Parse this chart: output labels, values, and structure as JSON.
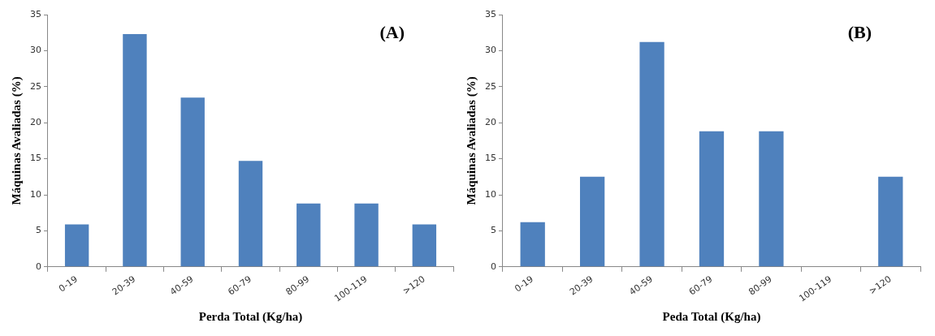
{
  "chart_data": [
    {
      "type": "bar",
      "categories": [
        "0-19",
        "20-39",
        "40-59",
        "60-79",
        "80-99",
        "100-119",
        ">120"
      ],
      "values": [
        5.9,
        32.3,
        23.5,
        14.7,
        8.8,
        8.8,
        5.9
      ],
      "color": "#4f81bd",
      "xlabel": "Perda Total (Kg/ha)",
      "ylabel": "Máquinas Avaliadas (%)",
      "ylim": [
        0,
        35
      ],
      "yticks": [
        0,
        5,
        10,
        15,
        20,
        25,
        30,
        35
      ],
      "grid": false,
      "legend": false,
      "annotations": [
        "(A)"
      ]
    },
    {
      "type": "bar",
      "categories": [
        "0-19",
        "20-39",
        "40-59",
        "60-79",
        "80-99",
        "100-119",
        ">120"
      ],
      "values": [
        6.2,
        12.5,
        31.2,
        18.8,
        18.8,
        0,
        12.5
      ],
      "color": "#4f81bd",
      "xlabel": "Peda Total (Kg/ha)",
      "ylabel": "Máquinas Avaliadas (%)",
      "ylim": [
        0,
        35
      ],
      "yticks": [
        0,
        5,
        10,
        15,
        20,
        25,
        30,
        35
      ],
      "grid": false,
      "legend": false,
      "annotations": [
        "(B)"
      ]
    }
  ]
}
